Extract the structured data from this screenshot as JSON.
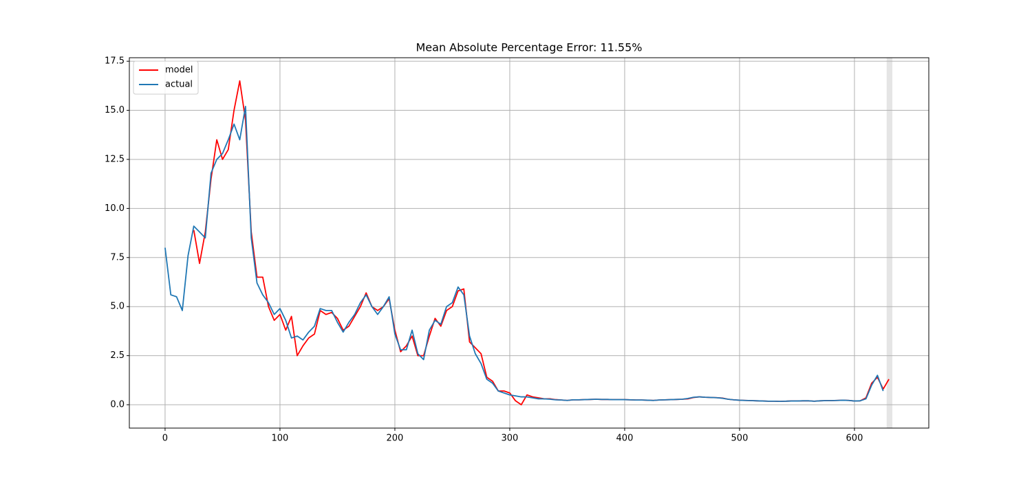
{
  "chart_data": {
    "type": "line",
    "title": "Mean Absolute Percentage Error: 11.55%",
    "x": [
      0,
      5,
      10,
      15,
      20,
      25,
      30,
      35,
      40,
      45,
      50,
      55,
      60,
      65,
      70,
      75,
      80,
      85,
      90,
      95,
      100,
      105,
      110,
      115,
      120,
      125,
      130,
      135,
      140,
      145,
      150,
      155,
      160,
      165,
      170,
      175,
      180,
      185,
      190,
      195,
      200,
      205,
      210,
      215,
      220,
      225,
      230,
      235,
      240,
      245,
      250,
      255,
      260,
      265,
      270,
      275,
      280,
      285,
      290,
      295,
      300,
      305,
      310,
      315,
      320,
      325,
      330,
      335,
      340,
      345,
      350,
      355,
      360,
      365,
      370,
      375,
      380,
      385,
      390,
      395,
      400,
      405,
      410,
      415,
      420,
      425,
      430,
      435,
      440,
      445,
      450,
      455,
      460,
      465,
      470,
      475,
      480,
      485,
      490,
      495,
      500,
      505,
      510,
      515,
      520,
      525,
      530,
      535,
      540,
      545,
      550,
      555,
      560,
      565,
      570,
      575,
      580,
      585,
      590,
      595,
      600,
      605,
      610,
      615,
      620,
      625,
      630,
      635
    ],
    "series": [
      {
        "name": "model",
        "color": "#ff0000",
        "values": [
          null,
          null,
          null,
          null,
          null,
          8.9,
          7.2,
          8.8,
          11.5,
          13.5,
          12.5,
          13.0,
          15.0,
          16.5,
          14.5,
          8.8,
          6.5,
          6.5,
          5.0,
          4.3,
          4.6,
          3.8,
          4.5,
          2.5,
          3.0,
          3.4,
          3.6,
          4.8,
          4.6,
          4.7,
          4.4,
          3.8,
          4.0,
          4.5,
          5.0,
          5.7,
          5.0,
          4.8,
          5.0,
          5.4,
          3.8,
          2.7,
          3.0,
          3.5,
          2.5,
          2.5,
          3.5,
          4.4,
          4.0,
          4.8,
          5.0,
          5.8,
          5.9,
          3.2,
          2.9,
          2.6,
          1.4,
          1.2,
          0.7,
          0.7,
          0.6,
          0.2,
          0.0,
          0.5,
          0.4,
          0.35,
          0.3,
          0.3,
          0.26,
          0.24,
          0.22,
          0.25,
          0.25,
          0.26,
          0.27,
          0.28,
          0.27,
          0.27,
          0.26,
          0.26,
          0.26,
          0.25,
          0.24,
          0.24,
          0.23,
          0.22,
          0.24,
          0.25,
          0.26,
          0.27,
          0.28,
          0.3,
          0.37,
          0.4,
          0.38,
          0.37,
          0.36,
          0.34,
          0.28,
          0.25,
          0.23,
          0.22,
          0.21,
          0.2,
          0.19,
          0.18,
          0.18,
          0.17,
          0.18,
          0.19,
          0.19,
          0.2,
          0.2,
          0.18,
          0.2,
          0.21,
          0.21,
          0.22,
          0.23,
          0.22,
          0.19,
          0.2,
          0.35,
          1.1,
          1.4,
          0.8,
          1.3,
          null
        ]
      },
      {
        "name": "actual",
        "color": "#1f77b4",
        "values": [
          8.0,
          5.6,
          5.5,
          4.8,
          7.6,
          9.1,
          8.8,
          8.5,
          11.8,
          12.5,
          12.8,
          13.5,
          14.3,
          13.5,
          15.2,
          8.5,
          6.2,
          5.6,
          5.2,
          4.6,
          4.9,
          4.3,
          3.4,
          3.5,
          3.3,
          3.7,
          4.0,
          4.9,
          4.8,
          4.8,
          4.2,
          3.7,
          4.2,
          4.6,
          5.2,
          5.6,
          5.0,
          4.6,
          5.0,
          5.5,
          3.6,
          2.8,
          2.8,
          3.8,
          2.6,
          2.3,
          3.8,
          4.3,
          4.1,
          5.0,
          5.2,
          6.0,
          5.6,
          3.5,
          2.6,
          2.1,
          1.3,
          1.1,
          0.7,
          0.6,
          0.5,
          0.45,
          0.4,
          0.4,
          0.35,
          0.3,
          0.3,
          0.28,
          0.25,
          0.24,
          0.22,
          0.25,
          0.25,
          0.26,
          0.27,
          0.28,
          0.27,
          0.27,
          0.26,
          0.26,
          0.26,
          0.25,
          0.24,
          0.24,
          0.23,
          0.22,
          0.24,
          0.25,
          0.26,
          0.27,
          0.28,
          0.32,
          0.38,
          0.4,
          0.38,
          0.37,
          0.36,
          0.33,
          0.28,
          0.25,
          0.23,
          0.22,
          0.21,
          0.2,
          0.19,
          0.18,
          0.18,
          0.17,
          0.18,
          0.19,
          0.19,
          0.2,
          0.2,
          0.18,
          0.2,
          0.21,
          0.21,
          0.22,
          0.23,
          0.22,
          0.19,
          0.2,
          0.3,
          1.0,
          1.5,
          0.7,
          null,
          null
        ]
      }
    ],
    "shaded_span": [
      628,
      633
    ],
    "xlim": [
      -31.1,
      664.7
    ],
    "ylim": [
      -1.19,
      17.68
    ],
    "xticks": [
      0,
      100,
      200,
      300,
      400,
      500,
      600
    ],
    "yticks": [
      {
        "value": 0,
        "label": "0.0"
      },
      2.5,
      {
        "value": 5,
        "label": "5.0"
      },
      7.5,
      {
        "value": 10,
        "label": "10.0"
      },
      12.5,
      {
        "value": 15,
        "label": "15.0"
      },
      17.5
    ],
    "grid": true,
    "legend": "upper left"
  }
}
